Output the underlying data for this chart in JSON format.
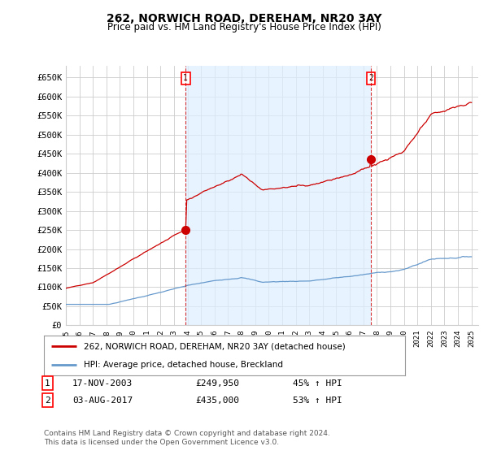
{
  "title": "262, NORWICH ROAD, DEREHAM, NR20 3AY",
  "subtitle": "Price paid vs. HM Land Registry's House Price Index (HPI)",
  "ylabel_ticks": [
    "£0",
    "£50K",
    "£100K",
    "£150K",
    "£200K",
    "£250K",
    "£300K",
    "£350K",
    "£400K",
    "£450K",
    "£500K",
    "£550K",
    "£600K",
    "£650K"
  ],
  "ytick_vals": [
    0,
    50000,
    100000,
    150000,
    200000,
    250000,
    300000,
    350000,
    400000,
    450000,
    500000,
    550000,
    600000,
    650000
  ],
  "ylim": [
    0,
    680000
  ],
  "red_line_color": "#cc0000",
  "blue_line_color": "#6699cc",
  "blue_fill_color": "#ddeeff",
  "grid_color": "#cccccc",
  "bg_color": "#ffffff",
  "sale1_year": 2003.88,
  "sale1_price": 249950,
  "sale2_year": 2017.59,
  "sale2_price": 435000,
  "legend_red_label": "262, NORWICH ROAD, DEREHAM, NR20 3AY (detached house)",
  "legend_blue_label": "HPI: Average price, detached house, Breckland",
  "footnote": "Contains HM Land Registry data © Crown copyright and database right 2024.\nThis data is licensed under the Open Government Licence v3.0.",
  "table_row1": [
    "1",
    "17-NOV-2003",
    "£249,950",
    "45% ↑ HPI"
  ],
  "table_row2": [
    "2",
    "03-AUG-2017",
    "£435,000",
    "53% ↑ HPI"
  ]
}
